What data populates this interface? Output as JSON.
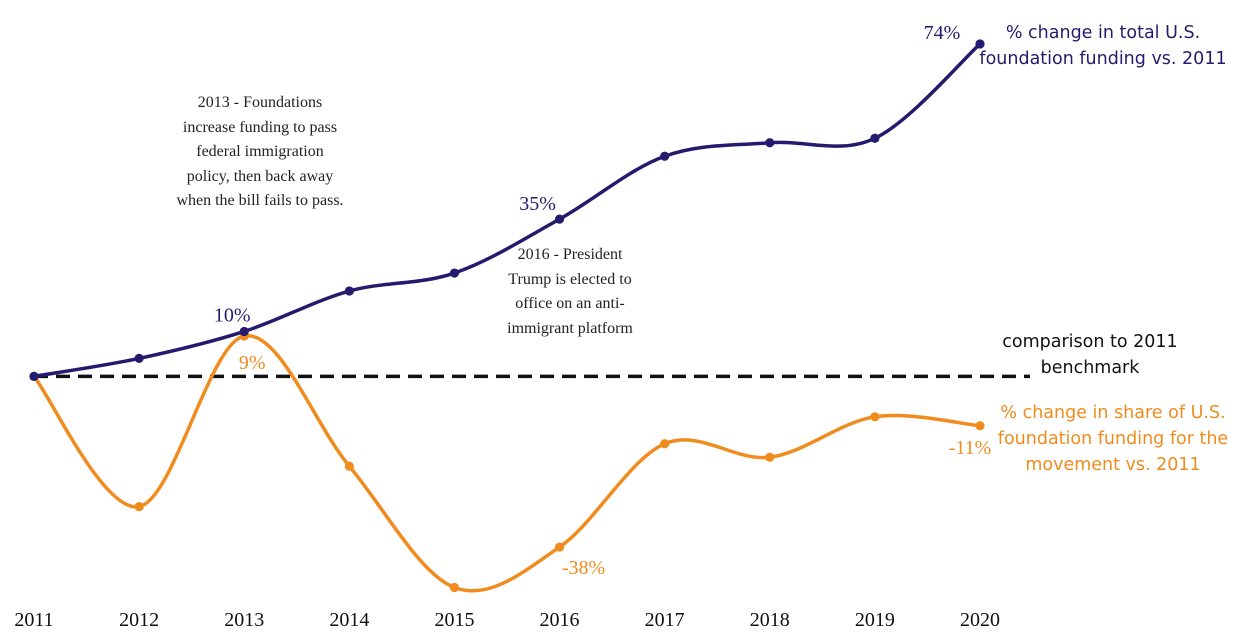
{
  "chart_data": {
    "type": "line",
    "x": [
      "2011",
      "2012",
      "2013",
      "2014",
      "2015",
      "2016",
      "2017",
      "2018",
      "2019",
      "2020"
    ],
    "ylim": [
      -48,
      82
    ],
    "grid": false,
    "legend": "none",
    "series": [
      {
        "name": "% change in total U.S. foundation funding vs. 2011",
        "color": "#231c6e",
        "values": [
          0,
          4,
          10,
          19,
          23,
          35,
          49,
          52,
          53,
          74
        ],
        "point_labels": [
          {
            "index": 2,
            "text": "10%"
          },
          {
            "index": 5,
            "text": "35%"
          },
          {
            "index": 9,
            "text": "74%"
          }
        ]
      },
      {
        "name": "% change in share of U.S. foundation funding for the movement vs. 2011",
        "color": "#f08c1e",
        "values": [
          0,
          -29,
          9,
          -20,
          -47,
          -38,
          -15,
          -18,
          -9,
          -11
        ],
        "point_labels": [
          {
            "index": 2,
            "text": "9%"
          },
          {
            "index": 5,
            "text": "-38%"
          },
          {
            "index": 9,
            "text": "-11%"
          }
        ]
      }
    ],
    "baseline": {
      "value": 0,
      "label": "comparison to 2011\nbenchmark"
    },
    "annotations": [
      {
        "text": "2013 - Foundations\nincrease funding to pass\nfederal immigration\npolicy, then back away\nwhen the bill fails to pass."
      },
      {
        "text": "2016 - President\nTrump is elected to\noffice on an anti-\nimmigrant platform"
      }
    ]
  },
  "labels": {
    "series1": "% change in total U.S.\nfoundation funding vs. 2011",
    "series2": "% change in share of U.S.\nfoundation funding for the\nmovement vs. 2011"
  }
}
